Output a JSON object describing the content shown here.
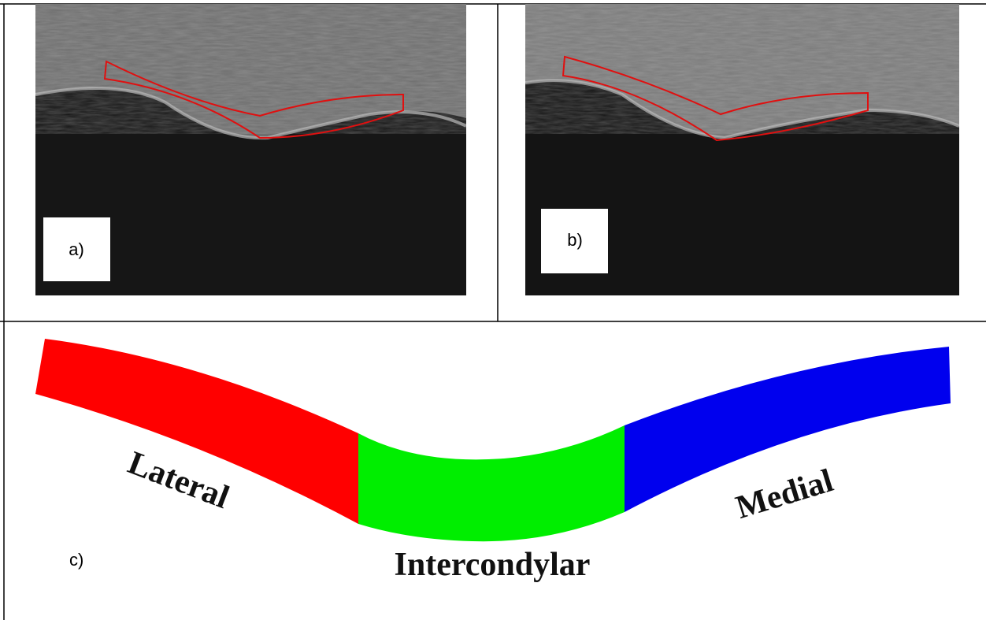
{
  "panels": {
    "a": {
      "label": "a)"
    },
    "b": {
      "label": "b)"
    },
    "c": {
      "label": "c)",
      "regions": [
        "Lateral",
        "Intercondylar",
        "Medial"
      ]
    }
  }
}
